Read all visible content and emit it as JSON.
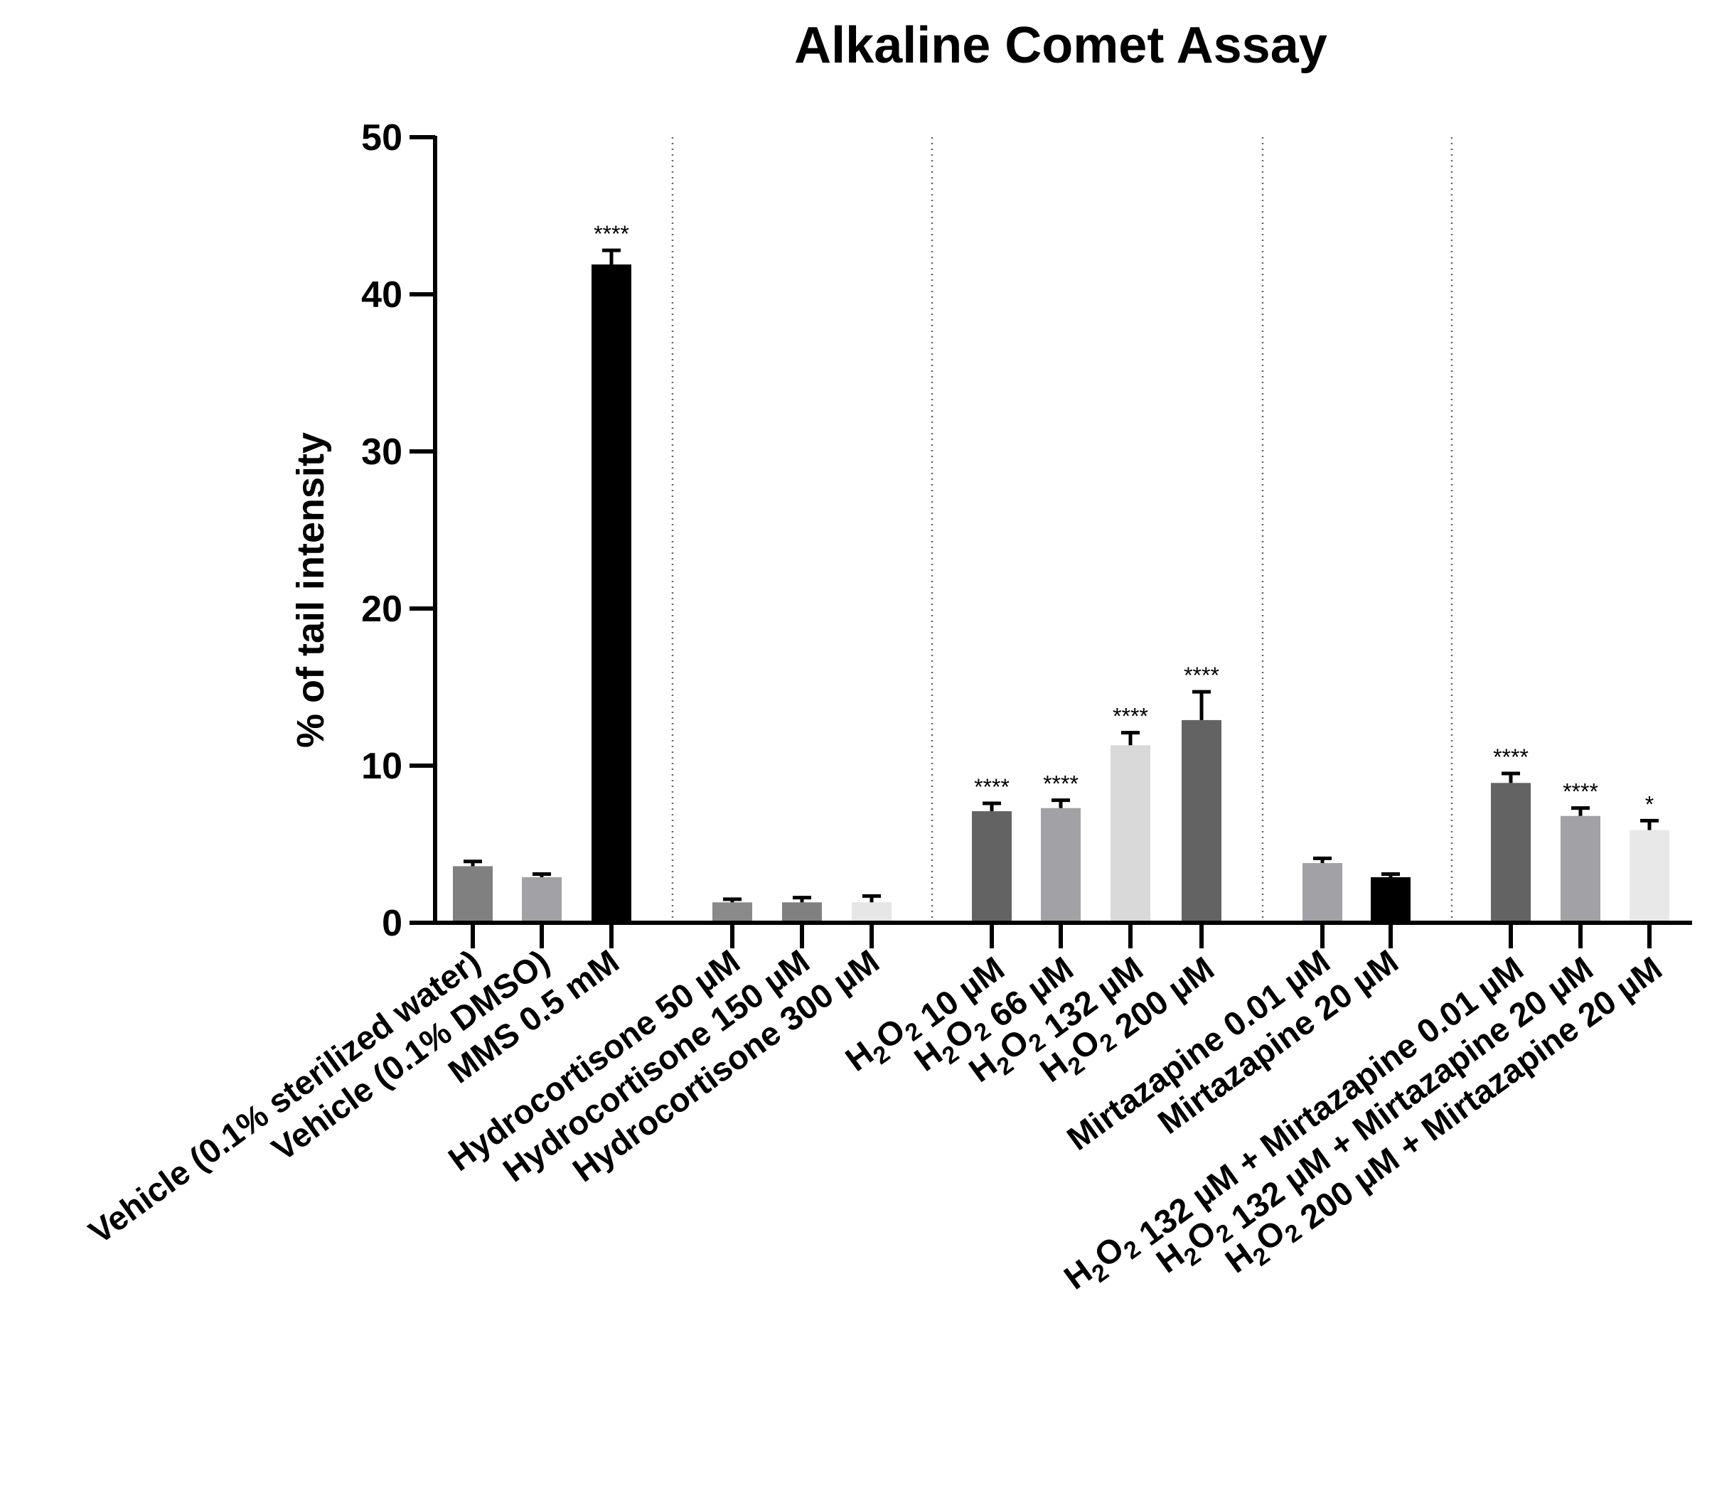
{
  "chart_data": {
    "type": "bar",
    "title": "Alkaline Comet Assay",
    "ylabel": "% of tail intensity",
    "xlabel": "",
    "ylim": [
      0,
      50
    ],
    "yticks": [
      "0",
      "10",
      "20",
      "30",
      "40",
      "50"
    ],
    "grid": false,
    "legend": "none",
    "group_separators": "dotted vertical lines between groups",
    "bars": [
      {
        "group": 0,
        "label": "Vehicle (0.1% sterilized water)",
        "value": 3.6,
        "error": 0.3,
        "color": "#808080",
        "sig": ""
      },
      {
        "group": 0,
        "label": "Vehicle (0.1% DMSO)",
        "value": 2.9,
        "error": 0.2,
        "color": "#a1a1a6",
        "sig": ""
      },
      {
        "group": 0,
        "label": "MMS 0.5 mM",
        "value": 41.9,
        "error": 0.9,
        "color": "#000000",
        "sig": "****"
      },
      {
        "group": 1,
        "label": "Hydrocortisone 50 µM",
        "value": 1.3,
        "error": 0.2,
        "color": "#8a8a8a",
        "sig": ""
      },
      {
        "group": 1,
        "label": "Hydrocortisone 150 µM",
        "value": 1.3,
        "error": 0.3,
        "color": "#808080",
        "sig": ""
      },
      {
        "group": 1,
        "label": "Hydrocortisone 300 µM",
        "value": 1.3,
        "error": 0.4,
        "color": "#e6e6e6",
        "sig": ""
      },
      {
        "group": 2,
        "label": "H2O2 10 µM",
        "value": 7.1,
        "error": 0.5,
        "color": "#636363",
        "sig": "****"
      },
      {
        "group": 2,
        "label": "H2O2 66 µM",
        "value": 7.3,
        "error": 0.5,
        "color": "#a1a1a6",
        "sig": "****"
      },
      {
        "group": 2,
        "label": "H2O2 132 µM",
        "value": 11.3,
        "error": 0.8,
        "color": "#d9d9d9",
        "sig": "****"
      },
      {
        "group": 2,
        "label": "H2O2 200 µM",
        "value": 12.9,
        "error": 1.8,
        "color": "#636363",
        "sig": "****"
      },
      {
        "group": 3,
        "label": "Mirtazapine 0.01 µM",
        "value": 3.8,
        "error": 0.3,
        "color": "#a1a1a6",
        "sig": ""
      },
      {
        "group": 3,
        "label": "Mirtazapine 20 µM",
        "value": 2.9,
        "error": 0.2,
        "color": "#000000",
        "sig": ""
      },
      {
        "group": 4,
        "label": "H2O2 132 µM + Mirtazapine 0.01 µM",
        "value": 8.9,
        "error": 0.6,
        "color": "#636363",
        "sig": "****"
      },
      {
        "group": 4,
        "label": "H2O2 132 µM + Mirtazapine 20 µM",
        "value": 6.8,
        "error": 0.5,
        "color": "#a1a1a6",
        "sig": "****"
      },
      {
        "group": 4,
        "label": "H2O2 200 µM + Mirtazapine 20 µM",
        "value": 5.9,
        "error": 0.6,
        "color": "#e8e8e8",
        "sig": "*"
      }
    ]
  }
}
